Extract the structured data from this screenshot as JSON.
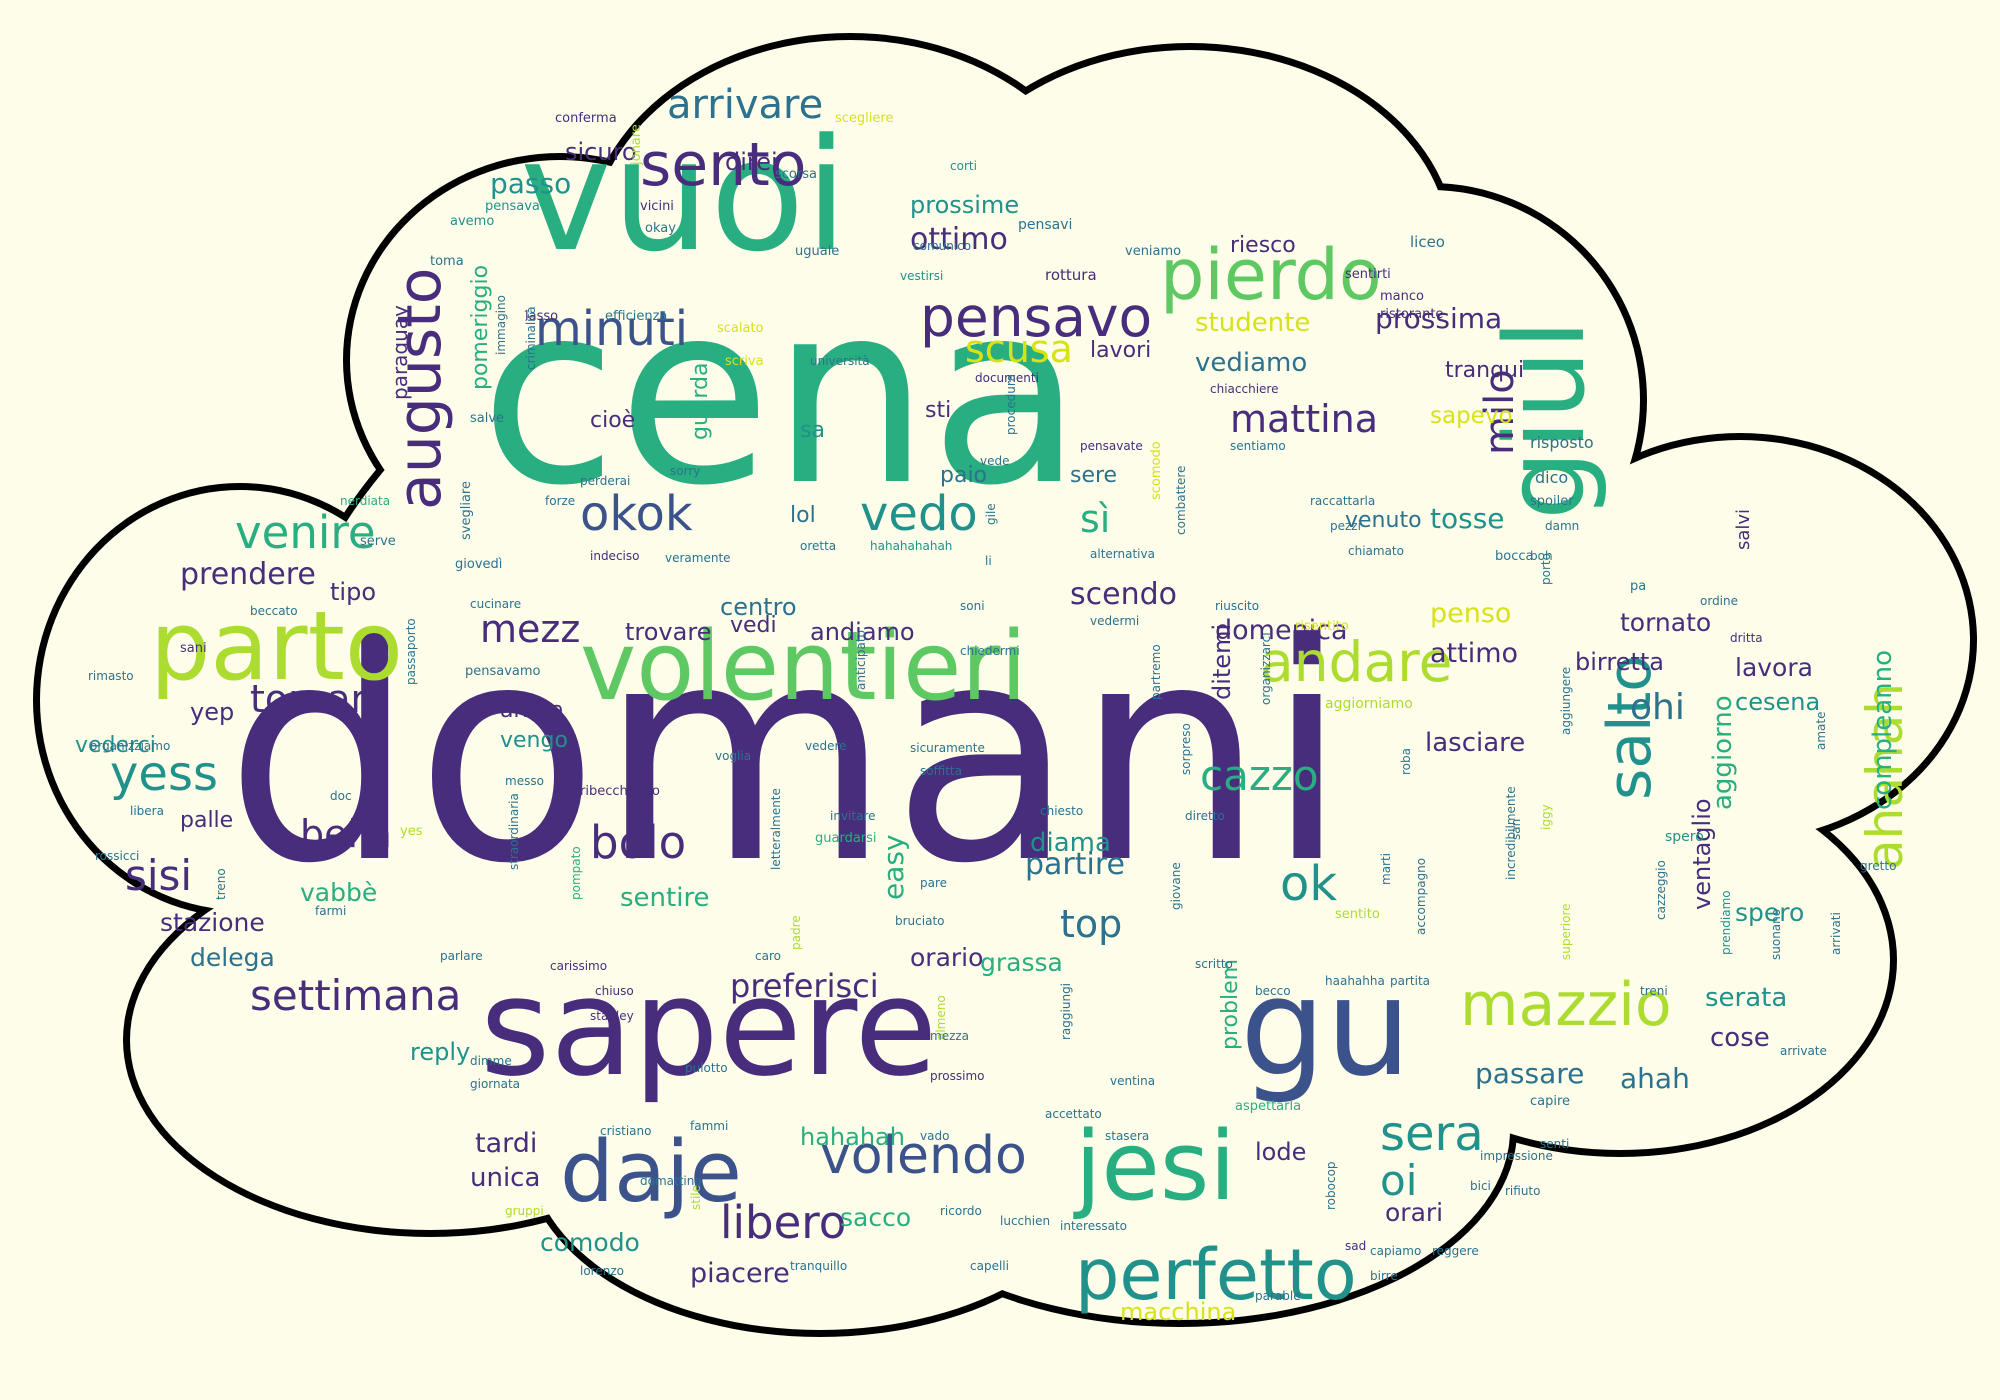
{
  "palette": {
    "background": "#fdfdea",
    "cloud_fill": "#fdfdea",
    "cloud_outline": "#000000",
    "dark_purple": "#472d7b",
    "blue": "#3b528b",
    "teal_blue": "#2c728e",
    "teal": "#21918c",
    "green_teal": "#28ae80",
    "green": "#5ec962",
    "lime": "#addc30",
    "yellow_green": "#d8e219"
  },
  "words": [
    {
      "t": "domani",
      "c": "dark_purple"
    },
    {
      "t": "cena",
      "c": "green_teal"
    },
    {
      "t": "sapere",
      "c": "dark_purple"
    },
    {
      "t": "vuoi",
      "c": "green_teal"
    },
    {
      "t": "volentieri",
      "c": "green"
    },
    {
      "t": "gu",
      "c": "blue"
    },
    {
      "t": "giul",
      "c": "green_teal"
    },
    {
      "t": "jesi",
      "c": "green_teal"
    },
    {
      "t": "parto",
      "c": "lime"
    },
    {
      "t": "daje",
      "c": "blue"
    },
    {
      "t": "pierdo",
      "c": "green"
    },
    {
      "t": "sento",
      "c": "dark_purple"
    },
    {
      "t": "augusto",
      "c": "dark_purple"
    },
    {
      "t": "perfetto",
      "c": "teal"
    },
    {
      "t": "mazzio",
      "c": "lime"
    },
    {
      "t": "salto",
      "c": "teal"
    },
    {
      "t": "ahahah",
      "c": "lime"
    },
    {
      "t": "pensavo",
      "c": "dark_purple"
    },
    {
      "t": "andare",
      "c": "lime"
    },
    {
      "t": "volendo",
      "c": "blue"
    },
    {
      "t": "libero",
      "c": "dark_purple"
    },
    {
      "t": "minuti",
      "c": "blue"
    },
    {
      "t": "okok",
      "c": "blue"
    },
    {
      "t": "vedo",
      "c": "teal"
    },
    {
      "t": "venire",
      "c": "green_teal"
    },
    {
      "t": "yess",
      "c": "teal"
    },
    {
      "t": "sisi",
      "c": "dark_purple"
    },
    {
      "t": "bolo",
      "c": "dark_purple"
    },
    {
      "t": "ok",
      "c": "teal"
    },
    {
      "t": "settimana",
      "c": "dark_purple"
    },
    {
      "t": "sera",
      "c": "teal"
    },
    {
      "t": "arrivare",
      "c": "teal_blue"
    },
    {
      "t": "scusa",
      "c": "yellow_green"
    },
    {
      "t": "mattina",
      "c": "dark_purple"
    },
    {
      "t": "cazzo",
      "c": "green_teal"
    },
    {
      "t": "tornare",
      "c": "dark_purple"
    },
    {
      "t": "mezz",
      "c": "dark_purple"
    },
    {
      "t": "bella",
      "c": "dark_purple"
    },
    {
      "t": "milo",
      "c": "dark_purple"
    },
    {
      "t": "top",
      "c": "teal_blue"
    },
    {
      "t": "ohi",
      "c": "teal_blue"
    },
    {
      "t": "oi",
      "c": "teal"
    },
    {
      "t": "preferisci",
      "c": "dark_purple"
    },
    {
      "t": "prendere",
      "c": "dark_purple"
    },
    {
      "t": "ottimo",
      "c": "dark_purple"
    },
    {
      "t": "sì",
      "c": "green_teal"
    },
    {
      "t": "scendo",
      "c": "dark_purple"
    },
    {
      "t": "tosse",
      "c": "teal"
    },
    {
      "t": "partire",
      "c": "teal_blue"
    },
    {
      "t": "studente",
      "c": "yellow_green"
    },
    {
      "t": "vediamo",
      "c": "teal_blue"
    },
    {
      "t": "prossima",
      "c": "dark_purple"
    },
    {
      "t": "domenica",
      "c": "dark_purple"
    },
    {
      "t": "penso",
      "c": "yellow_green"
    },
    {
      "t": "attimo",
      "c": "dark_purple"
    },
    {
      "t": "birretta",
      "c": "dark_purple"
    },
    {
      "t": "tornato",
      "c": "dark_purple"
    },
    {
      "t": "lavora",
      "c": "dark_purple"
    },
    {
      "t": "cesena",
      "c": "teal"
    },
    {
      "t": "aggiorno",
      "c": "green_teal"
    },
    {
      "t": "compleanno",
      "c": "green_teal"
    },
    {
      "t": "spero",
      "c": "teal"
    },
    {
      "t": "ventaglio",
      "c": "dark_purple"
    },
    {
      "t": "serata",
      "c": "teal"
    },
    {
      "t": "cose",
      "c": "dark_purple"
    },
    {
      "t": "passare",
      "c": "teal_blue"
    },
    {
      "t": "ahah",
      "c": "teal_blue"
    },
    {
      "t": "lasciare",
      "c": "dark_purple"
    },
    {
      "t": "diama",
      "c": "teal"
    },
    {
      "t": "grassa",
      "c": "green_teal"
    },
    {
      "t": "orario",
      "c": "dark_purple"
    },
    {
      "t": "easy",
      "c": "green_teal"
    },
    {
      "t": "sentire",
      "c": "green_teal"
    },
    {
      "t": "vabbè",
      "c": "green_teal"
    },
    {
      "t": "stazione",
      "c": "dark_purple"
    },
    {
      "t": "delega",
      "c": "teal_blue"
    },
    {
      "t": "tardi",
      "c": "dark_purple"
    },
    {
      "t": "unica",
      "c": "dark_purple"
    },
    {
      "t": "comodo",
      "c": "teal"
    },
    {
      "t": "piacere",
      "c": "dark_purple"
    },
    {
      "t": "sacco",
      "c": "green_teal"
    },
    {
      "t": "hahahah",
      "c": "green_teal"
    },
    {
      "t": "macchina",
      "c": "yellow_green"
    },
    {
      "t": "orari",
      "c": "dark_purple"
    },
    {
      "t": "lode",
      "c": "dark_purple"
    },
    {
      "t": "reply",
      "c": "teal"
    },
    {
      "t": "problem",
      "c": "green_teal"
    },
    {
      "t": "vedi",
      "c": "dark_purple"
    },
    {
      "t": "andiamo",
      "c": "dark_purple"
    },
    {
      "t": "trovare",
      "c": "dark_purple"
    },
    {
      "t": "centro",
      "c": "teal_blue"
    },
    {
      "t": "arriva",
      "c": "dark_purple"
    },
    {
      "t": "vengo",
      "c": "teal"
    },
    {
      "t": "vederci",
      "c": "teal"
    },
    {
      "t": "yep",
      "c": "dark_purple"
    },
    {
      "t": "tipo",
      "c": "dark_purple"
    },
    {
      "t": "palle",
      "c": "dark_purple"
    },
    {
      "t": "ditemi",
      "c": "dark_purple"
    },
    {
      "t": "sapevo",
      "c": "yellow_green"
    },
    {
      "t": "venuto",
      "c": "teal_blue"
    },
    {
      "t": "lol",
      "c": "teal_blue"
    },
    {
      "t": "paio",
      "c": "teal_blue"
    },
    {
      "t": "sere",
      "c": "teal_blue"
    },
    {
      "t": "sti",
      "c": "dark_purple"
    },
    {
      "t": "cioè",
      "c": "dark_purple"
    },
    {
      "t": "sa",
      "c": "teal"
    },
    {
      "t": "guarda",
      "c": "green_teal"
    },
    {
      "t": "pomeriggio",
      "c": "green_teal"
    },
    {
      "t": "paraguay",
      "c": "dark_purple"
    },
    {
      "t": "riesco",
      "c": "dark_purple"
    },
    {
      "t": "tranqui",
      "c": "dark_purple"
    },
    {
      "t": "lavori",
      "c": "dark_purple"
    },
    {
      "t": "passo",
      "c": "teal"
    },
    {
      "t": "sicuro",
      "c": "dark_purple"
    },
    {
      "t": "direi",
      "c": "dark_purple"
    },
    {
      "t": "prossime",
      "c": "teal"
    },
    {
      "t": "risposto",
      "c": "teal_blue"
    },
    {
      "t": "dico",
      "c": "teal_blue"
    },
    {
      "t": "salvi",
      "c": "dark_purple"
    },
    {
      "t": "conferma",
      "c": "dark_purple"
    },
    {
      "t": "scegliere",
      "c": "yellow_green"
    },
    {
      "t": "scorsa",
      "c": "teal_blue"
    },
    {
      "t": "jonare",
      "c": "lime"
    },
    {
      "t": "corti",
      "c": "teal"
    },
    {
      "t": "vicini",
      "c": "dark_purple"
    },
    {
      "t": "pensava",
      "c": "teal"
    },
    {
      "t": "comunico",
      "c": "teal_blue"
    },
    {
      "t": "pensavi",
      "c": "teal_blue"
    },
    {
      "t": "okay",
      "c": "teal_blue"
    },
    {
      "t": "avemo",
      "c": "teal"
    },
    {
      "t": "liceo",
      "c": "teal_blue"
    },
    {
      "t": "veniamo",
      "c": "teal_blue"
    },
    {
      "t": "uguale",
      "c": "teal_blue"
    },
    {
      "t": "vestirsi",
      "c": "teal"
    },
    {
      "t": "rottura",
      "c": "dark_purple"
    },
    {
      "t": "sentirti",
      "c": "dark_purple"
    },
    {
      "t": "manco",
      "c": "dark_purple"
    },
    {
      "t": "toma",
      "c": "teal_blue"
    },
    {
      "t": "lasso",
      "c": "dark_purple"
    },
    {
      "t": "efficienza",
      "c": "teal_blue"
    },
    {
      "t": "scalato",
      "c": "yellow_green"
    },
    {
      "t": "ristorante",
      "c": "dark_purple"
    },
    {
      "t": "scriva",
      "c": "yellow_green"
    },
    {
      "t": "università",
      "c": "teal_blue"
    },
    {
      "t": "documenti",
      "c": "dark_purple"
    },
    {
      "t": "chiacchiere",
      "c": "dark_purple"
    },
    {
      "t": "procedura",
      "c": "teal_blue"
    },
    {
      "t": "immagino",
      "c": "teal_blue"
    },
    {
      "t": "criminalità",
      "c": "teal_blue"
    },
    {
      "t": "salve",
      "c": "teal_blue"
    },
    {
      "t": "sorry",
      "c": "teal_blue"
    },
    {
      "t": "perderai",
      "c": "teal_blue"
    },
    {
      "t": "forze",
      "c": "teal_blue"
    },
    {
      "t": "svegliare",
      "c": "teal_blue"
    },
    {
      "t": "nerdiata",
      "c": "green_teal"
    },
    {
      "t": "giovedì",
      "c": "teal_blue"
    },
    {
      "t": "indeciso",
      "c": "dark_purple"
    },
    {
      "t": "veramente",
      "c": "teal_blue"
    },
    {
      "t": "oretta",
      "c": "teal_blue"
    },
    {
      "t": "hahahahahah",
      "c": "teal"
    },
    {
      "t": "gile",
      "c": "teal_blue"
    },
    {
      "t": "li",
      "c": "teal_blue"
    },
    {
      "t": "vede",
      "c": "teal_blue"
    },
    {
      "t": "pensavate",
      "c": "dark_purple"
    },
    {
      "t": "scomodo",
      "c": "yellow_green"
    },
    {
      "t": "alternativa",
      "c": "teal_blue"
    },
    {
      "t": "combattere",
      "c": "teal_blue"
    },
    {
      "t": "sentiamo",
      "c": "teal_blue"
    },
    {
      "t": "raccattarla",
      "c": "teal_blue"
    },
    {
      "t": "pezzi",
      "c": "teal_blue"
    },
    {
      "t": "chiamato",
      "c": "teal_blue"
    },
    {
      "t": "spoiler",
      "c": "teal_blue"
    },
    {
      "t": "damn",
      "c": "teal_blue"
    },
    {
      "t": "bocca",
      "c": "teal_blue"
    },
    {
      "t": "boh",
      "c": "teal_blue"
    },
    {
      "t": "porto",
      "c": "teal_blue"
    },
    {
      "t": "pa",
      "c": "teal_blue"
    },
    {
      "t": "ordine",
      "c": "teal_blue"
    },
    {
      "t": "dritta",
      "c": "dark_purple"
    },
    {
      "t": "serve",
      "c": "teal_blue"
    },
    {
      "t": "beccato",
      "c": "teal_blue"
    },
    {
      "t": "cucinare",
      "c": "teal_blue"
    },
    {
      "t": "soni",
      "c": "teal_blue"
    },
    {
      "t": "vedermi",
      "c": "teal_blue"
    },
    {
      "t": "riuscito",
      "c": "teal_blue"
    },
    {
      "t": "risentito",
      "c": "yellow_green"
    },
    {
      "t": "sani",
      "c": "dark_purple"
    },
    {
      "t": "rimasto",
      "c": "teal_blue"
    },
    {
      "t": "pensavamo",
      "c": "teal_blue"
    },
    {
      "t": "passaporto",
      "c": "teal_blue"
    },
    {
      "t": "anticipato",
      "c": "teal_blue"
    },
    {
      "t": "chiedermi",
      "c": "teal_blue"
    },
    {
      "t": "partremo",
      "c": "teal_blue"
    },
    {
      "t": "organizzarci",
      "c": "teal_blue"
    },
    {
      "t": "aggiungere",
      "c": "teal_blue"
    },
    {
      "t": "aggiorniamo",
      "c": "lime"
    },
    {
      "t": "organizziamo",
      "c": "teal_blue"
    },
    {
      "t": "vedere",
      "c": "teal_blue"
    },
    {
      "t": "voglia",
      "c": "teal_blue"
    },
    {
      "t": "sicuramente",
      "c": "teal_blue"
    },
    {
      "t": "soffitta",
      "c": "teal_blue"
    },
    {
      "t": "sorpreso",
      "c": "teal_blue"
    },
    {
      "t": "roba",
      "c": "teal_blue"
    },
    {
      "t": "messo",
      "c": "teal_blue"
    },
    {
      "t": "doc",
      "c": "teal_blue"
    },
    {
      "t": "libera",
      "c": "teal_blue"
    },
    {
      "t": "rossicci",
      "c": "teal_blue"
    },
    {
      "t": "ribecchiamo",
      "c": "dark_purple"
    },
    {
      "t": "invitare",
      "c": "teal_blue"
    },
    {
      "t": "chiesto",
      "c": "teal_blue"
    },
    {
      "t": "diretto",
      "c": "teal_blue"
    },
    {
      "t": "straordinaria",
      "c": "teal_blue"
    },
    {
      "t": "letteralmente",
      "c": "teal_blue"
    },
    {
      "t": "guardarsi",
      "c": "green_teal"
    },
    {
      "t": "pompato",
      "c": "green_teal"
    },
    {
      "t": "pare",
      "c": "teal_blue"
    },
    {
      "t": "bruciato",
      "c": "teal_blue"
    },
    {
      "t": "giovane",
      "c": "teal_blue"
    },
    {
      "t": "sentito",
      "c": "lime"
    },
    {
      "t": "marti",
      "c": "teal_blue"
    },
    {
      "t": "accompagno",
      "c": "teal_blue"
    },
    {
      "t": "incredibilmente",
      "c": "teal_blue"
    },
    {
      "t": "spero",
      "c": "teal"
    },
    {
      "t": "cazzeggio",
      "c": "teal_blue"
    },
    {
      "t": "amate",
      "c": "teal_blue"
    },
    {
      "t": "gretto",
      "c": "teal_blue"
    },
    {
      "t": "treno",
      "c": "teal_blue"
    },
    {
      "t": "yes",
      "c": "lime"
    },
    {
      "t": "farmi",
      "c": "teal_blue"
    },
    {
      "t": "parlare",
      "c": "teal_blue"
    },
    {
      "t": "carissimo",
      "c": "dark_purple"
    },
    {
      "t": "caro",
      "c": "teal_blue"
    },
    {
      "t": "padre",
      "c": "lime"
    },
    {
      "t": "scritto",
      "c": "teal_blue"
    },
    {
      "t": "becco",
      "c": "teal_blue"
    },
    {
      "t": "haahahha",
      "c": "teal_blue"
    },
    {
      "t": "partita",
      "c": "teal_blue"
    },
    {
      "t": "superiore",
      "c": "lime"
    },
    {
      "t": "prendiamo",
      "c": "teal"
    },
    {
      "t": "suonano",
      "c": "teal_blue"
    },
    {
      "t": "arrivati",
      "c": "teal_blue"
    },
    {
      "t": "treni",
      "c": "teal_blue"
    },
    {
      "t": "arrivate",
      "c": "teal_blue"
    },
    {
      "t": "chiuso",
      "c": "dark_purple"
    },
    {
      "t": "stanley",
      "c": "dark_purple"
    },
    {
      "t": "almeno",
      "c": "lime"
    },
    {
      "t": "raggiungi",
      "c": "teal_blue"
    },
    {
      "t": "prossimo",
      "c": "dark_purple"
    },
    {
      "t": "pulotto",
      "c": "teal_blue"
    },
    {
      "t": "dimme",
      "c": "teal_blue"
    },
    {
      "t": "giornata",
      "c": "teal_blue"
    },
    {
      "t": "cristiano",
      "c": "teal_blue"
    },
    {
      "t": "fammi",
      "c": "teal_blue"
    },
    {
      "t": "vado",
      "c": "teal_blue"
    },
    {
      "t": "accettato",
      "c": "teal_blue"
    },
    {
      "t": "stasera",
      "c": "teal_blue"
    },
    {
      "t": "ventina",
      "c": "teal_blue"
    },
    {
      "t": "aspettarla",
      "c": "green_teal"
    },
    {
      "t": "capire",
      "c": "teal_blue"
    },
    {
      "t": "senti",
      "c": "teal_blue"
    },
    {
      "t": "robocop",
      "c": "teal_blue"
    },
    {
      "t": "rifiuto",
      "c": "teal_blue"
    },
    {
      "t": "bici",
      "c": "teal_blue"
    },
    {
      "t": "impressione",
      "c": "teal_blue"
    },
    {
      "t": "ricordo",
      "c": "teal_blue"
    },
    {
      "t": "interessato",
      "c": "teal_blue"
    },
    {
      "t": "domattina",
      "c": "teal_blue"
    },
    {
      "t": "stile",
      "c": "lime"
    },
    {
      "t": "lucchien",
      "c": "teal_blue"
    },
    {
      "t": "capelli",
      "c": "teal_blue"
    },
    {
      "t": "tranquillo",
      "c": "teal_blue"
    },
    {
      "t": "gruppi",
      "c": "lime"
    },
    {
      "t": "lorenzo",
      "c": "teal_blue"
    },
    {
      "t": "parable",
      "c": "teal_blue"
    },
    {
      "t": "sad",
      "c": "dark_purple"
    },
    {
      "t": "capiamo",
      "c": "teal_blue"
    },
    {
      "t": "reggere",
      "c": "teal_blue"
    },
    {
      "t": "birre",
      "c": "teal_blue"
    },
    {
      "t": "mezza",
      "c": "teal_blue"
    },
    {
      "t": "san",
      "c": "teal_blue"
    },
    {
      "t": "iggy",
      "c": "lime"
    }
  ]
}
